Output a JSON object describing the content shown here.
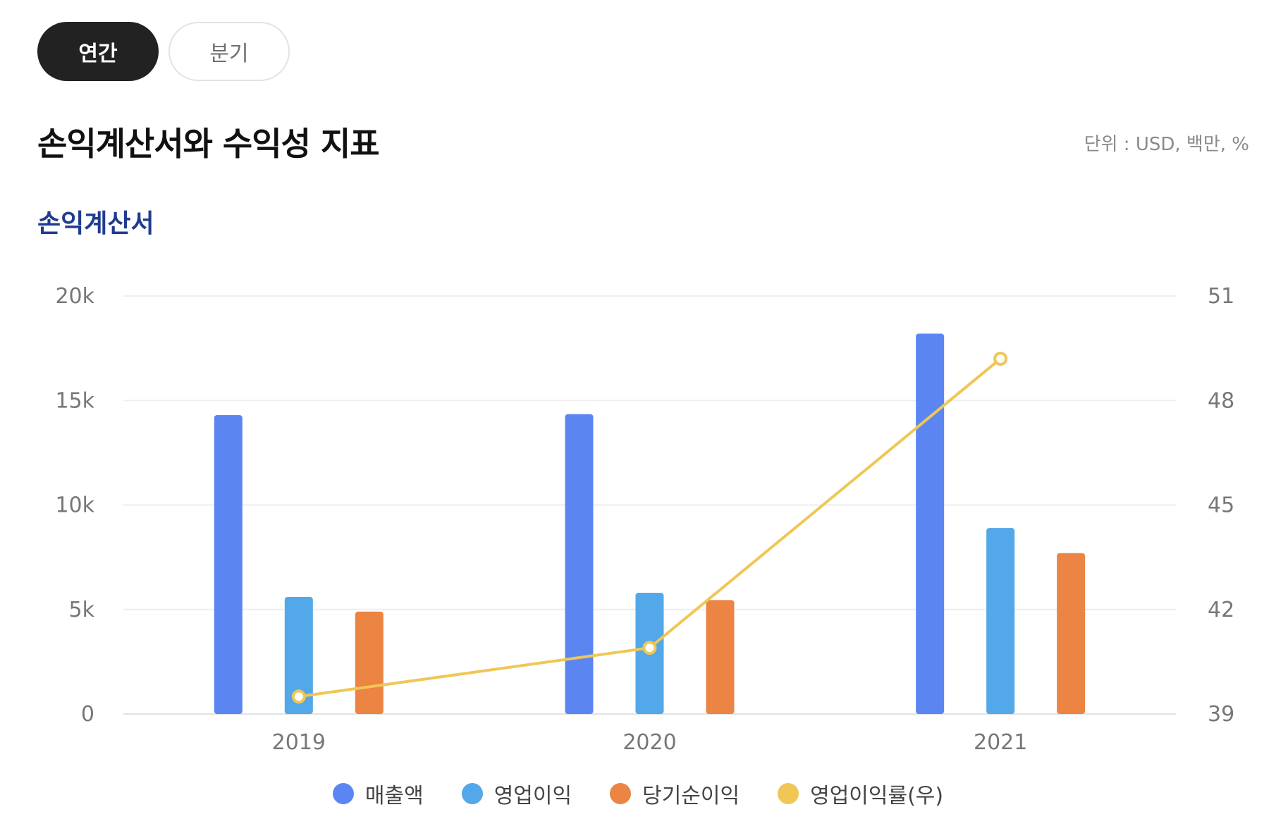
{
  "tabs": [
    {
      "label": "연간",
      "active": true
    },
    {
      "label": "분기",
      "active": false
    }
  ],
  "title": "손익계산서와 수익성 지표",
  "unit": "단위 : USD, 백만, %",
  "subtitle": "손익계산서",
  "colors": {
    "revenue": "#5b86f2",
    "operating_income": "#52a8e8",
    "net_income": "#ec8444",
    "operating_margin": "#f0c755"
  },
  "chart_data": {
    "type": "bar",
    "categories": [
      "2019",
      "2020",
      "2021"
    ],
    "series": [
      {
        "name": "매출액",
        "axis": "left",
        "type": "bar",
        "values": [
          14300,
          14350,
          18200
        ]
      },
      {
        "name": "영업이익",
        "axis": "left",
        "type": "bar",
        "values": [
          5600,
          5800,
          8900
        ]
      },
      {
        "name": "당기순이익",
        "axis": "left",
        "type": "bar",
        "values": [
          4900,
          5450,
          7700
        ]
      },
      {
        "name": "영업이익률(우)",
        "axis": "right",
        "type": "line",
        "values": [
          39.5,
          40.9,
          49.2
        ]
      }
    ],
    "ylim_left": [
      0,
      20000
    ],
    "yticks_left": [
      "0",
      "5k",
      "10k",
      "15k",
      "20k"
    ],
    "ylim_right": [
      39,
      51
    ],
    "yticks_right": [
      "39",
      "42",
      "45",
      "48",
      "51"
    ],
    "grid": true,
    "legend": "bottom"
  }
}
